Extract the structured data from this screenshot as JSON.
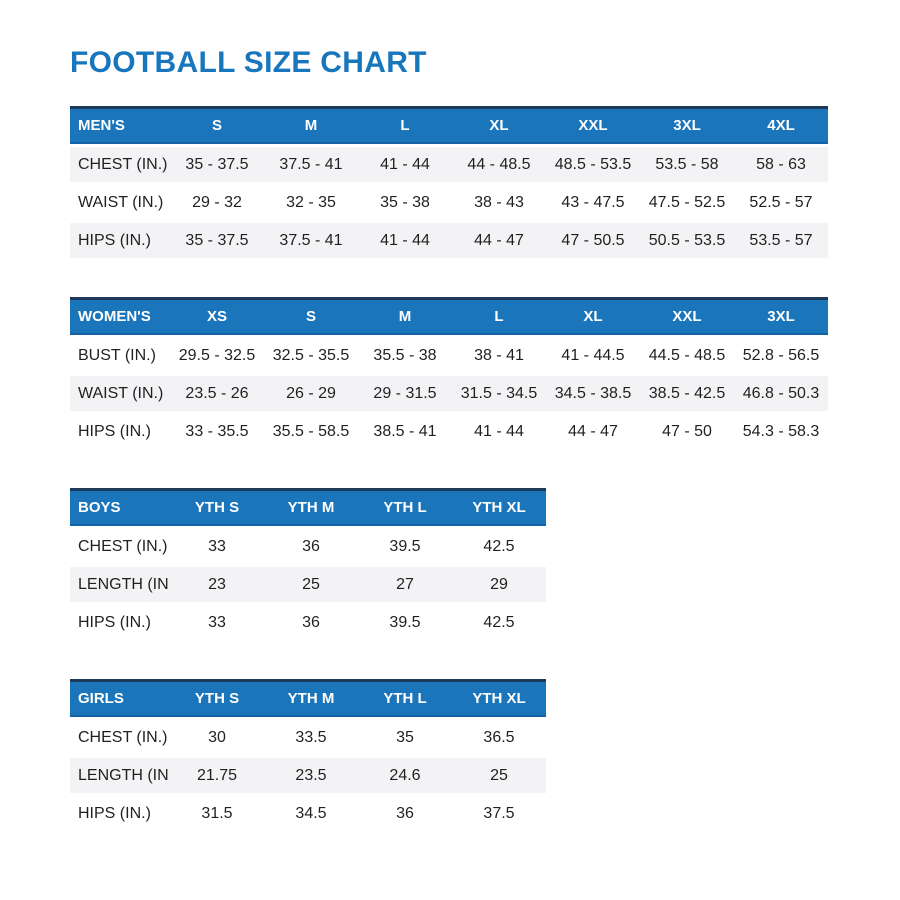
{
  "page": {
    "title": "FOOTBALL SIZE CHART"
  },
  "colors": {
    "title_blue": "#1876bd",
    "header_blue": "#1b75bb",
    "header_top_border": "#1e3a5a",
    "header_bottom_border": "#1362a5",
    "shaded_row": "#f3f3f5",
    "text": "#231f20"
  },
  "tables": [
    {
      "id": "mens",
      "header": [
        "MEN'S",
        "S",
        "M",
        "L",
        "XL",
        "XXL",
        "3XL",
        "4XL"
      ],
      "rows": [
        {
          "label": "CHEST (IN.)",
          "values": [
            "35 - 37.5",
            "37.5 - 41",
            "41 - 44",
            "44 - 48.5",
            "48.5 - 53.5",
            "53.5 - 58",
            "58 - 63"
          ],
          "shaded": true
        },
        {
          "label": "WAIST (IN.)",
          "values": [
            "29 - 32",
            "32 - 35",
            "35 - 38",
            "38 - 43",
            "43 - 47.5",
            "47.5 - 52.5",
            "52.5 - 57"
          ],
          "shaded": false
        },
        {
          "label": "HIPS (IN.)",
          "values": [
            "35 - 37.5",
            "37.5 - 41",
            "41 - 44",
            "44 - 47",
            "47 - 50.5",
            "50.5 - 53.5",
            "53.5 - 57"
          ],
          "shaded": true
        }
      ]
    },
    {
      "id": "womens",
      "header": [
        "WOMEN'S",
        "XS",
        "S",
        "M",
        "L",
        "XL",
        "XXL",
        "3XL"
      ],
      "rows": [
        {
          "label": "BUST (IN.)",
          "values": [
            "29.5 - 32.5",
            "32.5 - 35.5",
            "35.5 - 38",
            "38 - 41",
            "41 - 44.5",
            "44.5 - 48.5",
            "52.8 - 56.5"
          ],
          "shaded": false
        },
        {
          "label": "WAIST (IN.)",
          "values": [
            "23.5 - 26",
            "26 - 29",
            "29 - 31.5",
            "31.5 - 34.5",
            "34.5 - 38.5",
            "38.5 - 42.5",
            "46.8 - 50.3"
          ],
          "shaded": true
        },
        {
          "label": "HIPS (IN.)",
          "values": [
            "33 - 35.5",
            "35.5 - 58.5",
            "38.5 - 41",
            "41 - 44",
            "44 - 47",
            "47 - 50",
            "54.3 - 58.3"
          ],
          "shaded": false
        }
      ]
    },
    {
      "id": "boys",
      "header": [
        "BOYS",
        "YTH S",
        "YTH M",
        "YTH L",
        "YTH XL"
      ],
      "rows": [
        {
          "label": "CHEST (IN.)",
          "values": [
            "33",
            "36",
            "39.5",
            "42.5"
          ],
          "shaded": false
        },
        {
          "label": "LENGTH (IN.)",
          "values": [
            "23",
            "25",
            "27",
            "29"
          ],
          "shaded": true
        },
        {
          "label": "HIPS (IN.)",
          "values": [
            "33",
            "36",
            "39.5",
            "42.5"
          ],
          "shaded": false
        }
      ]
    },
    {
      "id": "girls",
      "header": [
        "GIRLS",
        "YTH S",
        "YTH M",
        "YTH L",
        "YTH XL"
      ],
      "rows": [
        {
          "label": "CHEST (IN.)",
          "values": [
            "30",
            "33.5",
            "35",
            "36.5"
          ],
          "shaded": false
        },
        {
          "label": "LENGTH (IN.)",
          "values": [
            "21.75",
            "23.5",
            "24.6",
            "25"
          ],
          "shaded": true
        },
        {
          "label": "HIPS (IN.)",
          "values": [
            "31.5",
            "34.5",
            "36",
            "37.5"
          ],
          "shaded": false
        }
      ]
    }
  ]
}
